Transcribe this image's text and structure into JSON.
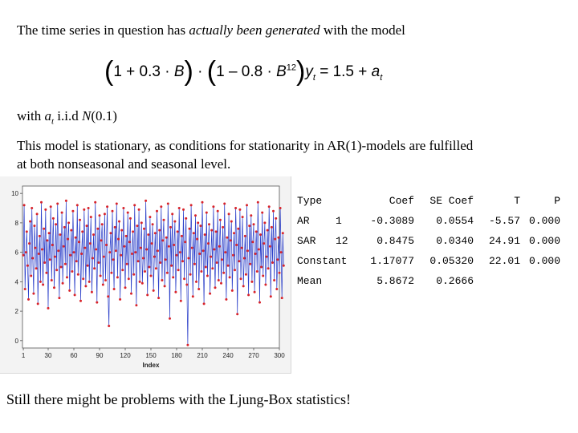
{
  "intro": {
    "lead": "The time series in question has ",
    "italic": "actually been generated",
    "tail": " with the model"
  },
  "formula": {
    "open": "(",
    "one": "1 + 0.3 · ",
    "B": "B",
    "close": ")",
    "dot": " · ",
    "one2": "1 – 0.8 · ",
    "B2": "B",
    "exp": "12",
    "y": "y",
    "t": "t",
    "eq": " = 1.5 + ",
    "a": "a",
    "t2": "t"
  },
  "noise": {
    "lead": "with ",
    "a": "a",
    "t": "t",
    "mid": " i.i.d ",
    "N": "N",
    "tail": "(0.1)"
  },
  "stationary": {
    "line1": "This model is stationary, as conditions for stationarity in AR(1)-models are fulfilled",
    "line2": "at both nonseasonal and seasonal level."
  },
  "footer": "Still there might be problems with the Ljung-Box statistics!",
  "table": {
    "header": [
      "Type",
      "",
      "Coef",
      "SE Coef",
      "T",
      "P"
    ],
    "rows": [
      [
        "AR",
        "1",
        "-0.3089",
        "0.0554",
        "-5.57",
        "0.000"
      ],
      [
        "SAR",
        "12",
        "0.8475",
        "0.0340",
        "24.91",
        "0.000"
      ],
      [
        "Constant",
        "",
        "1.17077",
        "0.05320",
        "22.01",
        "0.000"
      ],
      [
        "Mean",
        "",
        "5.8672",
        "0.2666",
        "",
        ""
      ]
    ]
  },
  "colors": {
    "line": "#2b3fc9",
    "point": "#d8232a",
    "plot_bg": "#ffffff",
    "panel_bg": "#f3f3f3"
  },
  "chart_data": {
    "type": "line",
    "title": "",
    "xlabel": "Index",
    "ylabel": "",
    "xlim": [
      0,
      300
    ],
    "ylim": [
      -0.5,
      10.5
    ],
    "xticks": [
      1,
      30,
      60,
      90,
      120,
      150,
      180,
      210,
      240,
      270,
      300
    ],
    "yticks": [
      0,
      2,
      4,
      6,
      8,
      10
    ],
    "grid": false,
    "legend": "none",
    "series": [
      {
        "y": [
          5.8,
          9.2,
          3.5,
          6.0,
          7.4,
          5.1,
          2.8,
          6.6,
          8.1,
          4.4,
          9.0,
          5.6,
          3.2,
          7.8,
          6.3,
          4.9,
          8.6,
          2.5,
          5.9,
          7.1,
          4.0,
          9.4,
          6.2,
          3.8,
          7.6,
          5.3,
          8.9,
          4.6,
          6.8,
          2.2,
          7.3,
          5.5,
          9.1,
          4.1,
          6.5,
          8.3,
          3.6,
          5.7,
          7.9,
          4.8,
          9.3,
          6.1,
          2.9,
          7.2,
          5.0,
          8.7,
          3.9,
          6.4,
          7.7,
          5.2,
          9.5,
          4.3,
          6.9,
          8.0,
          3.4,
          5.8,
          7.5,
          4.7,
          8.8,
          6.0,
          3.1,
          7.0,
          5.4,
          9.2,
          4.5,
          6.7,
          8.2,
          2.7,
          5.9,
          7.4,
          4.2,
          8.9,
          6.3,
          3.7,
          7.8,
          5.1,
          9.0,
          4.0,
          6.6,
          8.4,
          3.3,
          5.6,
          7.2,
          4.9,
          9.4,
          6.2,
          2.6,
          7.6,
          5.3,
          8.5,
          4.4,
          6.8,
          7.9,
          3.8,
          5.7,
          8.6,
          4.1,
          6.5,
          9.1,
          3.0,
          1.0,
          6.0,
          7.3,
          4.6,
          8.8,
          5.5,
          3.5,
          7.7,
          6.1,
          9.3,
          4.3,
          6.9,
          8.1,
          2.8,
          5.8,
          7.5,
          4.8,
          9.0,
          6.4,
          3.6,
          7.1,
          5.2,
          8.7,
          4.2,
          6.7,
          8.3,
          3.2,
          5.9,
          7.4,
          4.5,
          9.2,
          6.0,
          2.4,
          7.8,
          5.4,
          8.9,
          4.0,
          6.3,
          8.0,
          3.9,
          5.6,
          7.6,
          4.7,
          9.5,
          6.2,
          3.1,
          7.2,
          5.0,
          8.4,
          4.4,
          6.6,
          7.9,
          3.4,
          5.7,
          7.3,
          4.9,
          8.8,
          6.1,
          2.9,
          7.5,
          5.3,
          9.1,
          4.1,
          6.8,
          8.2,
          3.7,
          5.5,
          7.0,
          4.6,
          9.3,
          6.4,
          1.5,
          7.7,
          5.1,
          8.6,
          4.3,
          6.5,
          8.1,
          3.3,
          5.8,
          7.4,
          4.8,
          9.0,
          6.0,
          2.7,
          7.1,
          5.4,
          8.9,
          4.2,
          6.7,
          8.3,
          3.8,
          -0.3,
          5.6,
          7.6,
          4.5,
          9.2,
          6.3,
          3.0,
          7.3,
          5.2,
          8.5,
          4.0,
          6.9,
          8.0,
          3.5,
          5.9,
          7.8,
          4.7,
          9.4,
          6.1,
          2.5,
          7.2,
          5.0,
          8.7,
          4.4,
          6.6,
          7.9,
          3.2,
          5.7,
          7.5,
          4.9,
          9.1,
          6.2,
          3.6,
          7.4,
          5.3,
          8.8,
          4.1,
          6.4,
          8.2,
          3.9,
          5.5,
          7.7,
          4.6,
          9.3,
          6.0,
          2.8,
          7.0,
          5.1,
          8.6,
          4.3,
          6.8,
          8.1,
          3.4,
          5.8,
          7.3,
          4.8,
          9.0,
          6.5,
          1.8,
          7.6,
          5.4,
          8.9,
          4.2,
          6.3,
          8.4,
          3.7,
          5.6,
          7.1,
          4.5,
          9.2,
          6.1,
          3.1,
          7.8,
          5.2,
          8.5,
          4.0,
          6.7,
          7.9,
          3.3,
          5.9,
          7.4,
          4.7,
          9.4,
          6.2,
          2.6,
          7.2,
          5.0,
          8.7,
          4.4,
          6.6,
          8.0,
          3.8,
          5.7,
          7.5,
          4.9,
          9.1,
          6.4,
          3.0,
          7.7,
          5.3,
          8.8,
          4.1,
          6.9,
          8.3,
          3.5,
          5.5,
          7.0,
          4.6,
          9.0,
          6.0,
          2.9,
          7.3,
          5.1
        ]
      }
    ]
  }
}
